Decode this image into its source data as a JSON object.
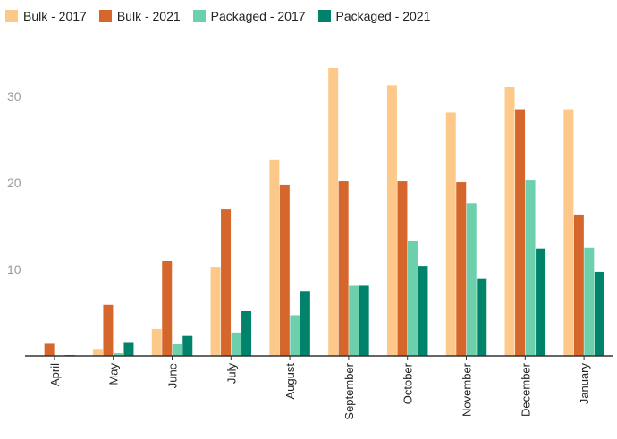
{
  "chart_data": {
    "type": "bar",
    "categories": [
      "April",
      "May",
      "June",
      "July",
      "August",
      "September",
      "October",
      "November",
      "December",
      "January"
    ],
    "series": [
      {
        "name": "Bulk - 2017",
        "color": "#FDC98A",
        "values": [
          0,
          0.8,
          3.1,
          10.3,
          22.7,
          33.3,
          31.3,
          28.1,
          31.1,
          28.5
        ]
      },
      {
        "name": "Bulk - 2021",
        "color": "#D6672C",
        "values": [
          1.5,
          5.9,
          11.0,
          17.0,
          19.8,
          20.2,
          20.2,
          20.1,
          28.5,
          16.3
        ]
      },
      {
        "name": "Packaged - 2017",
        "color": "#6DD0AC",
        "values": [
          0,
          0.3,
          1.4,
          2.7,
          4.7,
          8.2,
          13.3,
          17.6,
          20.3,
          12.5
        ]
      },
      {
        "name": "Packaged - 2021",
        "color": "#00836A",
        "values": [
          0.1,
          1.6,
          2.3,
          5.2,
          7.5,
          8.2,
          10.4,
          8.9,
          12.4,
          9.7
        ]
      }
    ],
    "yticks": [
      "10",
      "20",
      "30"
    ],
    "ylim": [
      0,
      35
    ],
    "legend_position": "top-left",
    "grid": false,
    "title": "",
    "xlabel": "",
    "ylabel": ""
  }
}
